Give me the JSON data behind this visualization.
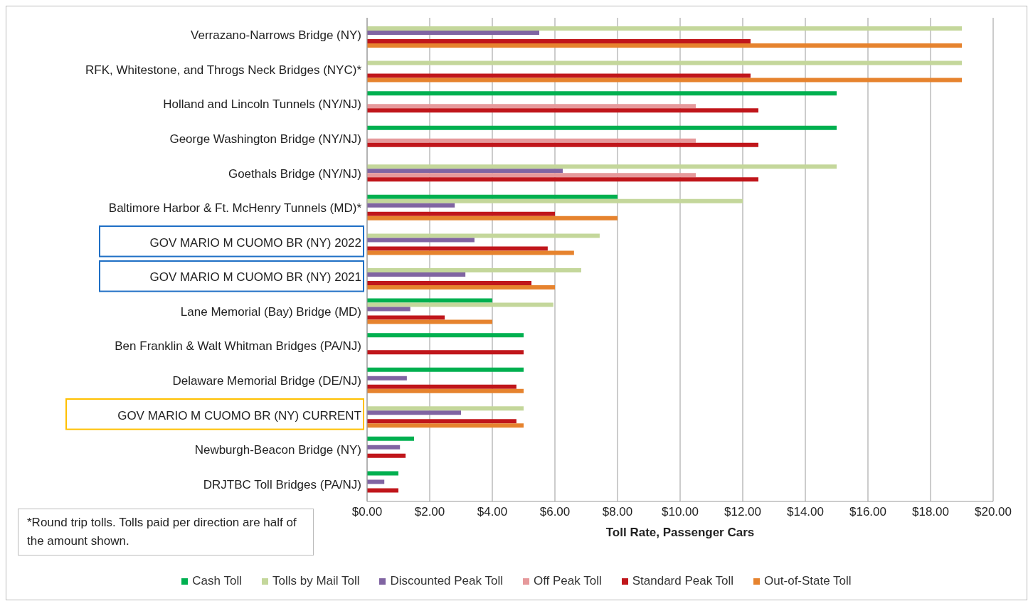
{
  "chart_data": {
    "type": "bar",
    "orientation": "horizontal",
    "xlabel": "Toll Rate, Passenger Cars",
    "categories": [
      "Verrazano-Narrows Bridge (NY)",
      "RFK, Whitestone, and Throgs Neck Bridges (NYC)*",
      "Holland and Lincoln Tunnels (NY/NJ)",
      "George Washington Bridge (NY/NJ)",
      "Goethals Bridge (NY/NJ)",
      "Baltimore Harbor & Ft. McHenry Tunnels (MD)*",
      "GOV MARIO M CUOMO BR (NY) 2022",
      "GOV MARIO M CUOMO BR (NY) 2021",
      "Lane Memorial (Bay) Bridge (MD)",
      "Ben Franklin & Walt Whitman Bridges (PA/NJ)",
      "Delaware Memorial Bridge (DE/NJ)",
      "GOV MARIO M CUOMO BR (NY) CURRENT",
      "Newburgh-Beacon Bridge (NY)",
      "DRJTBC Toll Bridges (PA/NJ)"
    ],
    "series": [
      {
        "name": "Cash Toll",
        "color": "#00b050",
        "values": [
          null,
          null,
          15,
          15,
          null,
          8,
          null,
          null,
          4,
          5,
          5,
          null,
          1.5,
          1
        ]
      },
      {
        "name": "Tolls by Mail Toll",
        "color": "#c4d79b",
        "values": [
          19,
          19,
          null,
          null,
          15,
          12,
          7.43,
          6.84,
          5.95,
          null,
          null,
          5,
          null,
          null
        ]
      },
      {
        "name": "Discounted Peak Toll",
        "color": "#8064a2",
        "values": [
          5.5,
          null,
          null,
          null,
          6.25,
          2.8,
          3.43,
          3.14,
          1.38,
          null,
          1.27,
          3,
          1.05,
          0.55
        ]
      },
      {
        "name": "Off Peak Toll",
        "color": "#e6999b",
        "values": [
          null,
          null,
          10.5,
          10.5,
          10.5,
          null,
          null,
          null,
          null,
          null,
          null,
          null,
          null,
          null
        ]
      },
      {
        "name": "Standard Peak Toll",
        "color": "#c0161b",
        "values": [
          12.25,
          12.25,
          12.5,
          12.5,
          12.5,
          6,
          5.77,
          5.25,
          2.48,
          5,
          4.77,
          4.77,
          1.23,
          1
        ]
      },
      {
        "name": "Out-of-State Toll",
        "color": "#e6832e",
        "values": [
          19,
          19,
          null,
          null,
          null,
          8,
          6.61,
          6,
          4,
          null,
          5,
          5,
          null,
          null
        ]
      }
    ],
    "xlim": [
      0,
      20
    ],
    "xticks": [
      {
        "value": 0,
        "label": "$0.00"
      },
      {
        "value": 2,
        "label": "$2.00"
      },
      {
        "value": 4,
        "label": "$4.00"
      },
      {
        "value": 6,
        "label": "$6.00"
      },
      {
        "value": 8,
        "label": "$8.00"
      },
      {
        "value": 10,
        "label": "$10.00"
      },
      {
        "value": 12,
        "label": "$12.00"
      },
      {
        "value": 14,
        "label": "$14.00"
      },
      {
        "value": 16,
        "label": "$16.00"
      },
      {
        "value": 18,
        "label": "$18.00"
      },
      {
        "value": 20,
        "label": "$20.00"
      }
    ],
    "grid": "x",
    "legend": "bottom",
    "annotations": [
      "*Round trip tolls. Tolls paid per direction are half of the amount shown."
    ]
  }
}
